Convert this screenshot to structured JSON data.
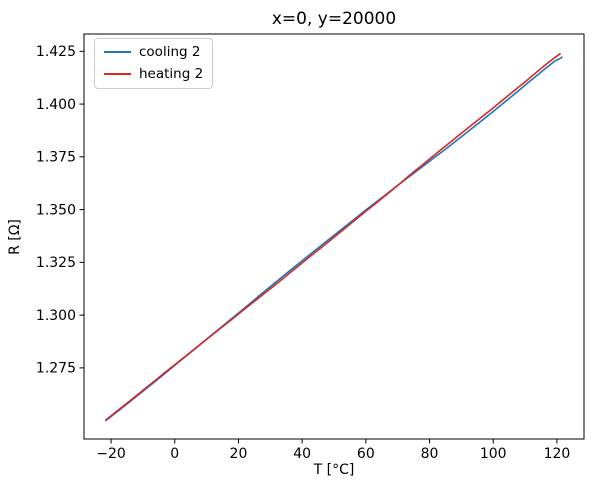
{
  "chart_data": {
    "type": "line",
    "title": "x=0, y=20000",
    "xlabel": "T [°C]",
    "ylabel": "R [Ω]",
    "xlim": [
      -28.5,
      128.5
    ],
    "ylim": [
      1.2413,
      1.4332
    ],
    "grid": false,
    "legend_position": "upper left",
    "x_ticks": [
      {
        "label": "−20",
        "value": -20
      },
      {
        "label": "0",
        "value": 0
      },
      {
        "label": "20",
        "value": 20
      },
      {
        "label": "40",
        "value": 40
      },
      {
        "label": "60",
        "value": 60
      },
      {
        "label": "80",
        "value": 80
      },
      {
        "label": "100",
        "value": 100
      },
      {
        "label": "120",
        "value": 120
      }
    ],
    "y_ticks": [
      {
        "label": "1.425",
        "value": 1.425
      },
      {
        "label": "1.400",
        "value": 1.4
      },
      {
        "label": "1.375",
        "value": 1.375
      },
      {
        "label": "1.350",
        "value": 1.35
      },
      {
        "label": "1.325",
        "value": 1.325
      },
      {
        "label": "1.300",
        "value": 1.3
      },
      {
        "label": "1.275",
        "value": 1.275
      }
    ],
    "series": [
      {
        "name": "cooling 2",
        "color": "#1f77b4",
        "points": [
          [
            -21.7,
            1.25
          ],
          [
            -18,
            1.2543
          ],
          [
            -15,
            1.2579
          ],
          [
            -12,
            1.2615
          ],
          [
            -9,
            1.2651
          ],
          [
            -6,
            1.2688
          ],
          [
            -3,
            1.2725
          ],
          [
            0,
            1.2762
          ],
          [
            3,
            1.2799
          ],
          [
            6,
            1.2836
          ],
          [
            9,
            1.2873
          ],
          [
            12,
            1.2911
          ],
          [
            15,
            1.2948
          ],
          [
            18,
            1.2985
          ],
          [
            21,
            1.3022
          ],
          [
            24,
            1.306
          ],
          [
            27,
            1.3098
          ],
          [
            30,
            1.3135
          ],
          [
            33,
            1.3172
          ],
          [
            36,
            1.3209
          ],
          [
            39,
            1.3246
          ],
          [
            42,
            1.3282
          ],
          [
            45,
            1.3318
          ],
          [
            48,
            1.3354
          ],
          [
            51,
            1.339
          ],
          [
            54,
            1.3426
          ],
          [
            57,
            1.3462
          ],
          [
            60,
            1.3498
          ],
          [
            63,
            1.3533
          ],
          [
            66,
            1.3568
          ],
          [
            69,
            1.3603
          ],
          [
            72,
            1.3638
          ],
          [
            75,
            1.3672
          ],
          [
            78,
            1.3706
          ],
          [
            81,
            1.3741
          ],
          [
            84,
            1.3775
          ],
          [
            87,
            1.381
          ],
          [
            90,
            1.3845
          ],
          [
            93,
            1.3881
          ],
          [
            96,
            1.3917
          ],
          [
            99,
            1.3953
          ],
          [
            102,
            1.399
          ],
          [
            105,
            1.4027
          ],
          [
            108,
            1.4064
          ],
          [
            111,
            1.4102
          ],
          [
            114,
            1.4139
          ],
          [
            117,
            1.4176
          ],
          [
            119.5,
            1.4205
          ],
          [
            121,
            1.4216
          ],
          [
            121.6,
            1.4222
          ]
        ]
      },
      {
        "name": "heating 2",
        "color": "#d62728",
        "points": [
          [
            -21.5,
            1.2505
          ],
          [
            -18,
            1.2547
          ],
          [
            -15,
            1.2583
          ],
          [
            -12,
            1.2619
          ],
          [
            -9,
            1.2656
          ],
          [
            -6,
            1.2692
          ],
          [
            -3,
            1.2729
          ],
          [
            0,
            1.2765
          ],
          [
            3,
            1.2801
          ],
          [
            6,
            1.2837
          ],
          [
            9,
            1.2873
          ],
          [
            12,
            1.2909
          ],
          [
            15,
            1.2945
          ],
          [
            18,
            1.2981
          ],
          [
            21,
            1.3017
          ],
          [
            24,
            1.3053
          ],
          [
            27,
            1.3089
          ],
          [
            30,
            1.3125
          ],
          [
            33,
            1.3161
          ],
          [
            36,
            1.3198
          ],
          [
            39,
            1.3235
          ],
          [
            42,
            1.3272
          ],
          [
            45,
            1.3308
          ],
          [
            48,
            1.3344
          ],
          [
            51,
            1.3381
          ],
          [
            54,
            1.3418
          ],
          [
            57,
            1.3455
          ],
          [
            60,
            1.3492
          ],
          [
            63,
            1.3528
          ],
          [
            66,
            1.3565
          ],
          [
            69,
            1.3602
          ],
          [
            72,
            1.364
          ],
          [
            75,
            1.3678
          ],
          [
            78,
            1.3715
          ],
          [
            81,
            1.3752
          ],
          [
            84,
            1.3789
          ],
          [
            87,
            1.3825
          ],
          [
            90,
            1.3862
          ],
          [
            93,
            1.3898
          ],
          [
            96,
            1.3934
          ],
          [
            99,
            1.397
          ],
          [
            102,
            1.4007
          ],
          [
            105,
            1.4044
          ],
          [
            108,
            1.4081
          ],
          [
            111,
            1.4118
          ],
          [
            114,
            1.4156
          ],
          [
            117,
            1.4193
          ],
          [
            119.5,
            1.4222
          ],
          [
            121,
            1.4238
          ]
        ]
      }
    ]
  }
}
